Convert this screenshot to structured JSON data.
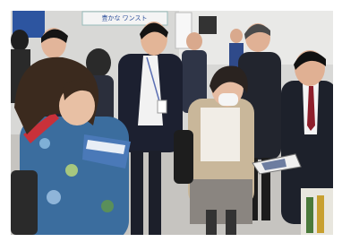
{
  "scene": {
    "banner_text": "豊かな ワンスト"
  }
}
